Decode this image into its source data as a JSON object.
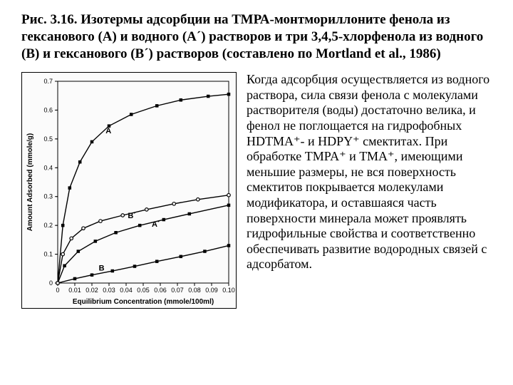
{
  "title": "Рис. 3.16. Изотермы адсорбции на ТМРА-монтмориллоните фенола из гексанового (А) и водного (А´) растворов и три 3,4,5-хлорфенола из водного (В) и гексанового (В´) растворов (составлено по Mortland et al., 1986)",
  "paragraph": "Когда адсорбция осуществляется из водного раствора, сила связи фенола с молекулами  растворителя (воды) достаточно велика, и фенол не поглощается на гидрофобных HDTMA⁺- и HDPY⁺ смектитах. При обработке TMPA⁺ и ТМА⁺, имеющими  меньшие размеры, не вся поверхность  смектитов покрывается молекулами модификатора, и оставшаяся часть поверхности минерала может проявлять гидрофильные свойства и соответственно обеспечивать развитие водородных связей с адсорбатом.",
  "chart": {
    "type": "line",
    "background_color": "#fbfbfb",
    "axis_color": "#000000",
    "grid_color": "#000000",
    "tick_fontsize": 9,
    "label_fontsize": 10,
    "series_label_fontsize": 11,
    "x_label": "Equilibrium Concentration (mmole/100ml)",
    "y_label": "Amount Adsorbed (mmole/g)",
    "xlim": [
      0,
      0.1
    ],
    "ylim": [
      0,
      0.7
    ],
    "x_ticks": [
      0,
      0.01,
      0.02,
      0.03,
      0.04,
      0.05,
      0.06,
      0.07,
      0.08,
      0.09,
      0.1
    ],
    "y_ticks": [
      0,
      0.1,
      0.2,
      0.3,
      0.4,
      0.5,
      0.6,
      0.7
    ],
    "series": {
      "A": {
        "label": "A",
        "label_xy": [
          0.028,
          0.52
        ],
        "marker": "square-filled",
        "marker_size": 4.5,
        "color": "#000000",
        "points": [
          [
            0,
            0
          ],
          [
            0.003,
            0.2
          ],
          [
            0.007,
            0.33
          ],
          [
            0.013,
            0.42
          ],
          [
            0.02,
            0.49
          ],
          [
            0.03,
            0.545
          ],
          [
            0.043,
            0.585
          ],
          [
            0.058,
            0.615
          ],
          [
            0.072,
            0.635
          ],
          [
            0.088,
            0.648
          ],
          [
            0.1,
            0.655
          ]
        ]
      },
      "Aprime": {
        "label": "A´",
        "label_xy": [
          0.055,
          0.195
        ],
        "marker": "square-filled",
        "marker_size": 4.5,
        "color": "#000000",
        "points": [
          [
            0,
            0
          ],
          [
            0.004,
            0.06
          ],
          [
            0.012,
            0.11
          ],
          [
            0.022,
            0.145
          ],
          [
            0.034,
            0.175
          ],
          [
            0.048,
            0.2
          ],
          [
            0.062,
            0.22
          ],
          [
            0.077,
            0.24
          ],
          [
            0.1,
            0.27
          ]
        ]
      },
      "B": {
        "label": "B",
        "label_xy": [
          0.024,
          0.043
        ],
        "marker": "square-filled",
        "marker_size": 4.5,
        "color": "#000000",
        "points": [
          [
            0,
            0
          ],
          [
            0.01,
            0.015
          ],
          [
            0.02,
            0.028
          ],
          [
            0.032,
            0.042
          ],
          [
            0.045,
            0.058
          ],
          [
            0.058,
            0.075
          ],
          [
            0.072,
            0.092
          ],
          [
            0.086,
            0.11
          ],
          [
            0.1,
            0.13
          ]
        ]
      },
      "Bprime": {
        "label": "B´",
        "label_xy": [
          0.041,
          0.225
        ],
        "marker": "circle-open",
        "marker_size": 4.5,
        "color": "#000000",
        "points": [
          [
            0,
            0
          ],
          [
            0.003,
            0.1
          ],
          [
            0.008,
            0.155
          ],
          [
            0.015,
            0.19
          ],
          [
            0.025,
            0.215
          ],
          [
            0.038,
            0.235
          ],
          [
            0.052,
            0.255
          ],
          [
            0.068,
            0.275
          ],
          [
            0.082,
            0.29
          ],
          [
            0.1,
            0.305
          ]
        ]
      }
    }
  }
}
